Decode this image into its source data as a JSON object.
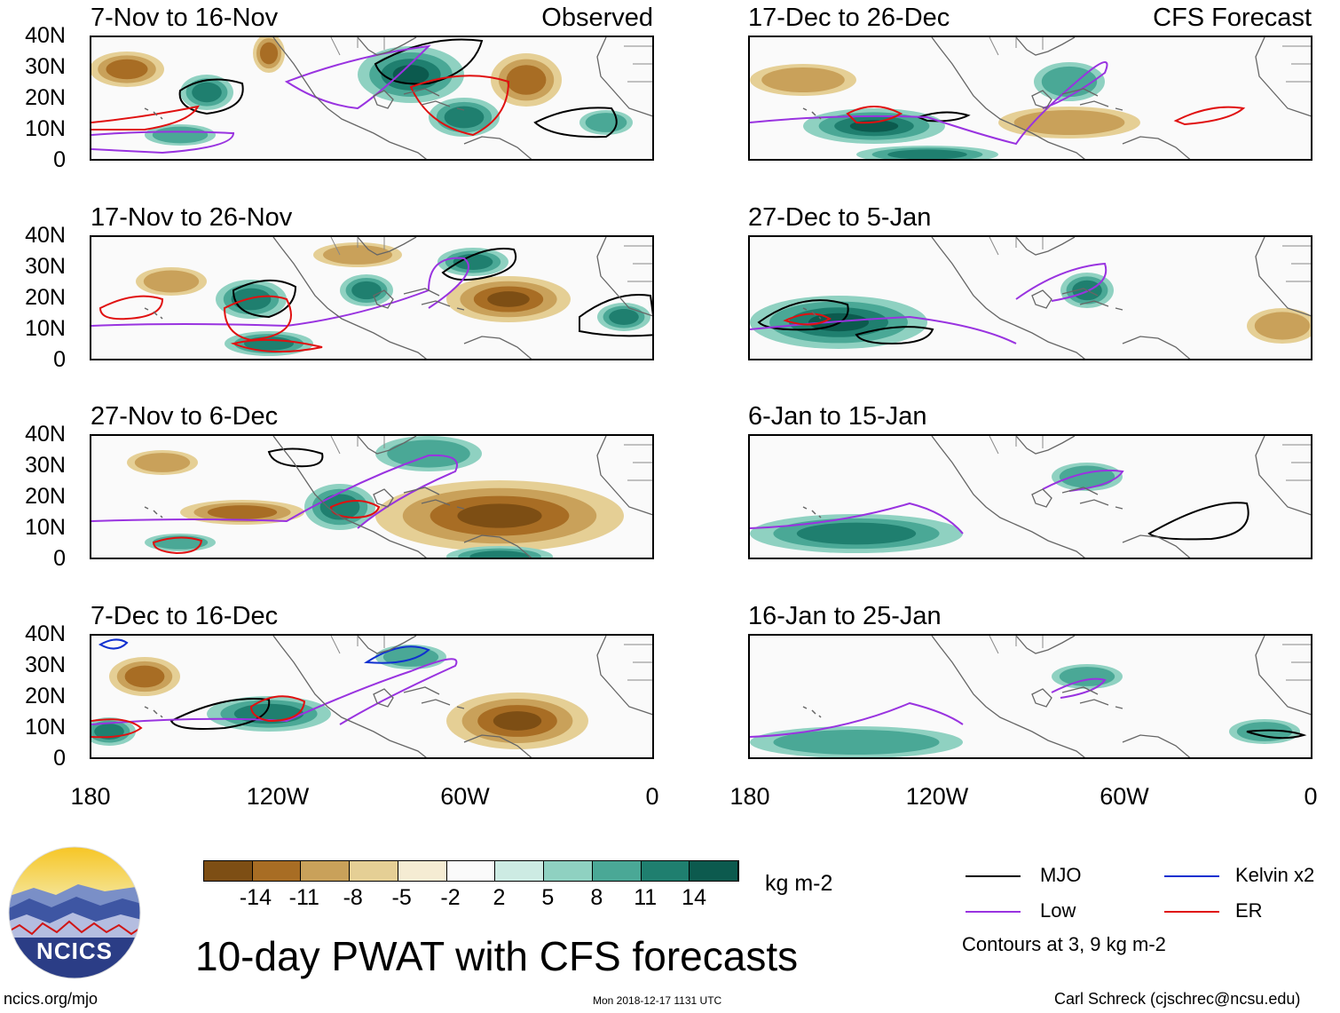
{
  "panels_left": [
    {
      "title": "7-Nov to 16-Nov",
      "tag": "Observed"
    },
    {
      "title": "17-Nov to 26-Nov",
      "tag": ""
    },
    {
      "title": "27-Nov to 6-Dec",
      "tag": ""
    },
    {
      "title": "7-Dec to 16-Dec",
      "tag": ""
    }
  ],
  "panels_right": [
    {
      "title": "17-Dec to 26-Dec",
      "tag": "CFS Forecast"
    },
    {
      "title": "27-Dec to 5-Jan",
      "tag": ""
    },
    {
      "title": "6-Jan to 15-Jan",
      "tag": ""
    },
    {
      "title": "16-Jan to 25-Jan",
      "tag": ""
    }
  ],
  "lat_labels": [
    "40N",
    "30N",
    "20N",
    "10N",
    "0"
  ],
  "lon_labels": [
    "180",
    "120W",
    "60W",
    "0"
  ],
  "colorbar": {
    "colors": [
      "#5c3a0d",
      "#7d4e14",
      "#a86d24",
      "#c9a15a",
      "#e5cf95",
      "#f5ecd3",
      "#fafafa",
      "#cdebe3",
      "#8fd1c1",
      "#4aa896",
      "#1f7f6f",
      "#0c5a4e",
      "#0a3e36"
    ],
    "labels": [
      "-14",
      "-11",
      "-8",
      "-5",
      "-2",
      "2",
      "5",
      "8",
      "11",
      "14"
    ],
    "units": "kg m-2"
  },
  "legend": {
    "items": [
      {
        "label": "MJO",
        "color": "#000000"
      },
      {
        "label": "Kelvin x2",
        "color": "#1030d0"
      },
      {
        "label": "Low",
        "color": "#9933e0"
      },
      {
        "label": "ER",
        "color": "#e01010"
      }
    ],
    "note": "Contours at 3, 9 kg m-2"
  },
  "logo_text": "NCICS",
  "main_title": "10-day PWAT with CFS forecasts",
  "footer": {
    "left": "ncics.org/mjo",
    "center": "Mon 2018-12-17 1131 UTC",
    "right": "Carl Schreck (cjschrec@ncsu.edu)"
  }
}
